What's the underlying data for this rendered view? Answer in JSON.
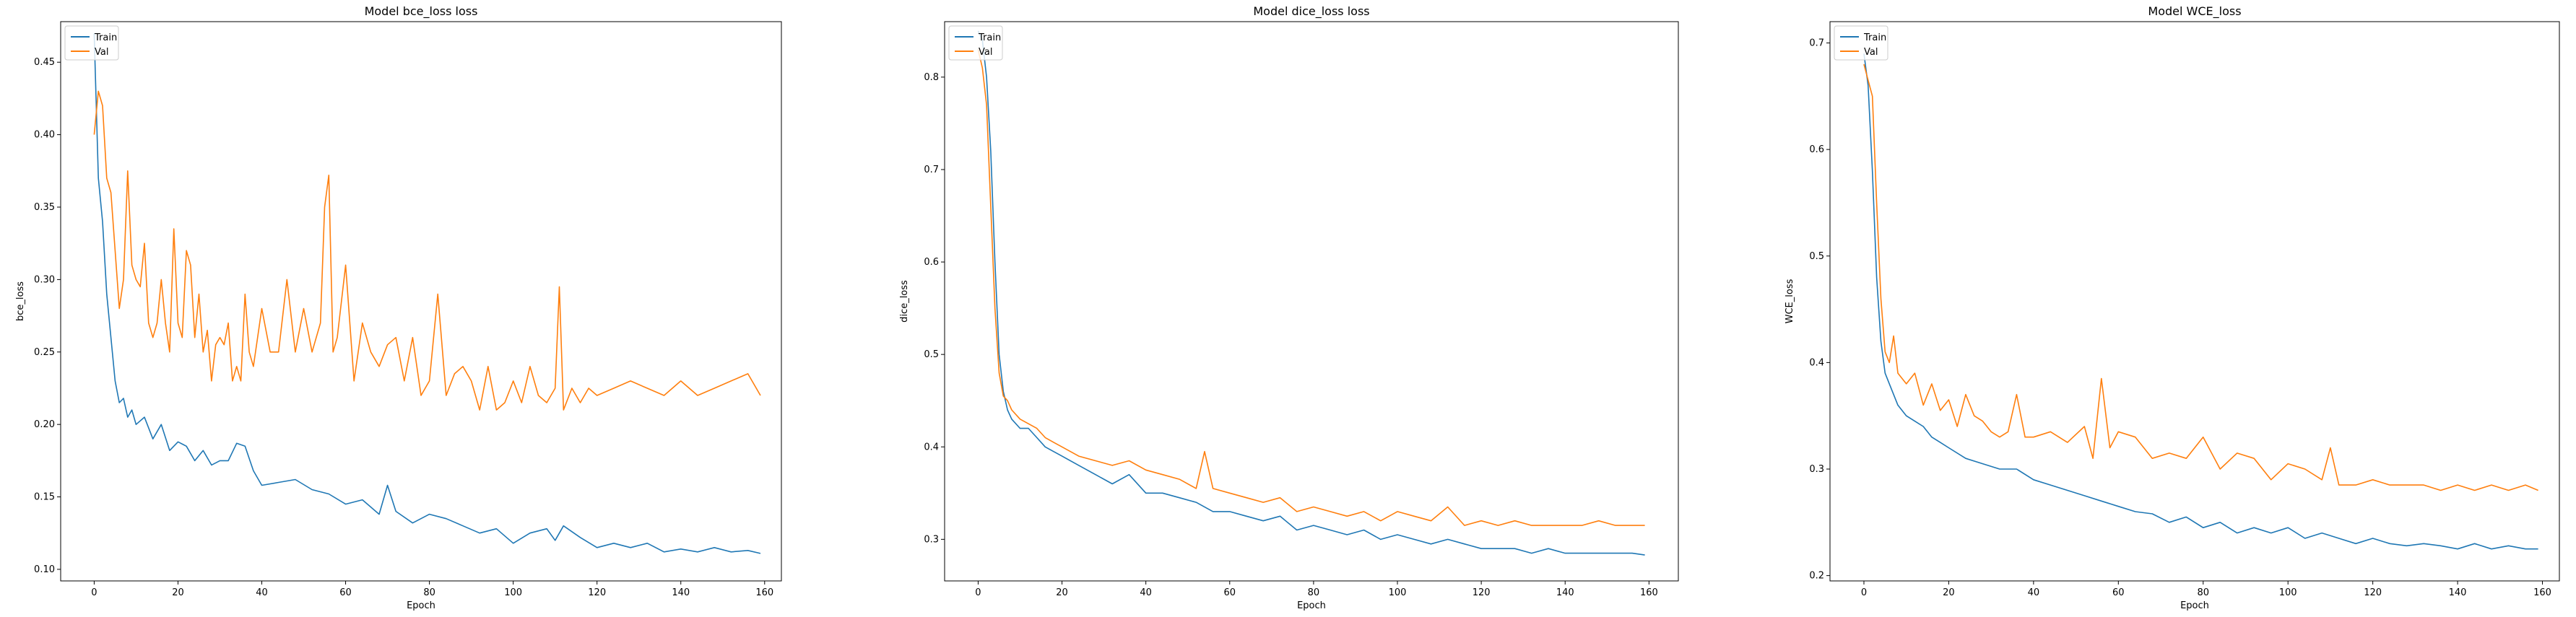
{
  "figure": {
    "colors": {
      "train": "#1f77b4",
      "val": "#ff7f0e"
    }
  },
  "chart_data": [
    {
      "type": "line",
      "title": "Model bce_loss loss",
      "xlabel": "Epoch",
      "ylabel": "bce_loss",
      "xlim": [
        -8,
        164
      ],
      "ylim": [
        0.092,
        0.478
      ],
      "xticks": [
        0,
        20,
        40,
        60,
        80,
        100,
        120,
        140,
        160
      ],
      "xtick_labels": [
        "0",
        "20",
        "40",
        "60",
        "80",
        "100",
        "120",
        "140",
        "160"
      ],
      "yticks": [
        0.1,
        0.15,
        0.2,
        0.25,
        0.3,
        0.35,
        0.4,
        0.45
      ],
      "ytick_labels": [
        "0.10",
        "0.15",
        "0.20",
        "0.25",
        "0.30",
        "0.35",
        "0.40",
        "0.45"
      ],
      "grid": false,
      "legend": {
        "position": "top-left",
        "entries": [
          "Train",
          "Val"
        ]
      },
      "series": [
        {
          "name": "Train",
          "color": "#1f77b4",
          "x": [
            0,
            1,
            2,
            3,
            4,
            5,
            6,
            7,
            8,
            9,
            10,
            12,
            14,
            16,
            18,
            20,
            22,
            24,
            26,
            28,
            30,
            32,
            34,
            36,
            38,
            40,
            44,
            48,
            52,
            56,
            60,
            64,
            68,
            70,
            72,
            76,
            80,
            84,
            88,
            92,
            96,
            100,
            104,
            108,
            110,
            112,
            116,
            120,
            124,
            128,
            132,
            136,
            140,
            144,
            148,
            152,
            156,
            159
          ],
          "values": [
            0.47,
            0.37,
            0.34,
            0.29,
            0.26,
            0.23,
            0.215,
            0.218,
            0.205,
            0.21,
            0.2,
            0.205,
            0.19,
            0.2,
            0.182,
            0.188,
            0.185,
            0.175,
            0.182,
            0.172,
            0.175,
            0.175,
            0.187,
            0.185,
            0.168,
            0.158,
            0.16,
            0.162,
            0.155,
            0.152,
            0.145,
            0.148,
            0.138,
            0.158,
            0.14,
            0.132,
            0.138,
            0.135,
            0.13,
            0.125,
            0.128,
            0.118,
            0.125,
            0.128,
            0.12,
            0.13,
            0.122,
            0.115,
            0.118,
            0.115,
            0.118,
            0.112,
            0.114,
            0.112,
            0.115,
            0.112,
            0.113,
            0.111
          ]
        },
        {
          "name": "Val",
          "color": "#ff7f0e",
          "x": [
            0,
            1,
            2,
            3,
            4,
            5,
            6,
            7,
            8,
            9,
            10,
            11,
            12,
            13,
            14,
            15,
            16,
            17,
            18,
            19,
            20,
            21,
            22,
            23,
            24,
            25,
            26,
            27,
            28,
            29,
            30,
            31,
            32,
            33,
            34,
            35,
            36,
            37,
            38,
            39,
            40,
            42,
            44,
            46,
            48,
            50,
            52,
            54,
            55,
            56,
            57,
            58,
            60,
            62,
            64,
            66,
            68,
            70,
            72,
            74,
            76,
            78,
            80,
            82,
            84,
            86,
            88,
            90,
            92,
            94,
            96,
            98,
            100,
            102,
            104,
            106,
            108,
            110,
            111,
            112,
            114,
            116,
            118,
            120,
            124,
            128,
            132,
            136,
            140,
            144,
            148,
            152,
            156,
            159
          ],
          "values": [
            0.4,
            0.43,
            0.42,
            0.37,
            0.36,
            0.32,
            0.28,
            0.3,
            0.375,
            0.31,
            0.3,
            0.295,
            0.325,
            0.27,
            0.26,
            0.27,
            0.3,
            0.27,
            0.25,
            0.335,
            0.27,
            0.26,
            0.32,
            0.31,
            0.26,
            0.29,
            0.25,
            0.265,
            0.23,
            0.255,
            0.26,
            0.255,
            0.27,
            0.23,
            0.24,
            0.23,
            0.29,
            0.25,
            0.24,
            0.26,
            0.28,
            0.25,
            0.25,
            0.3,
            0.25,
            0.28,
            0.25,
            0.27,
            0.35,
            0.372,
            0.25,
            0.26,
            0.31,
            0.23,
            0.27,
            0.25,
            0.24,
            0.255,
            0.26,
            0.23,
            0.26,
            0.22,
            0.23,
            0.29,
            0.22,
            0.235,
            0.24,
            0.23,
            0.21,
            0.24,
            0.21,
            0.215,
            0.23,
            0.215,
            0.24,
            0.22,
            0.215,
            0.225,
            0.295,
            0.21,
            0.225,
            0.215,
            0.225,
            0.22,
            0.225,
            0.23,
            0.225,
            0.22,
            0.23,
            0.22,
            0.225,
            0.23,
            0.235,
            0.22
          ]
        }
      ]
    },
    {
      "type": "line",
      "title": "Model dice_loss loss",
      "xlabel": "Epoch",
      "ylabel": "dice_loss",
      "xlim": [
        -8,
        167
      ],
      "ylim": [
        0.255,
        0.86
      ],
      "xticks": [
        0,
        20,
        40,
        60,
        80,
        100,
        120,
        140,
        160
      ],
      "xtick_labels": [
        "0",
        "20",
        "40",
        "60",
        "80",
        "100",
        "120",
        "140",
        "160"
      ],
      "yticks": [
        0.3,
        0.4,
        0.5,
        0.6,
        0.7,
        0.8
      ],
      "ytick_labels": [
        "0.3",
        "0.4",
        "0.5",
        "0.6",
        "0.7",
        "0.8"
      ],
      "grid": false,
      "legend": {
        "position": "top-left",
        "entries": [
          "Train",
          "Val"
        ]
      },
      "series": [
        {
          "name": "Train",
          "color": "#1f77b4",
          "x": [
            0,
            1,
            2,
            3,
            4,
            5,
            6,
            7,
            8,
            10,
            12,
            14,
            16,
            18,
            20,
            24,
            28,
            32,
            36,
            40,
            44,
            48,
            52,
            56,
            60,
            64,
            68,
            72,
            76,
            80,
            84,
            88,
            92,
            96,
            100,
            104,
            108,
            112,
            116,
            120,
            124,
            128,
            132,
            136,
            140,
            144,
            148,
            152,
            156,
            159
          ],
          "values": [
            0.85,
            0.84,
            0.8,
            0.72,
            0.6,
            0.5,
            0.46,
            0.44,
            0.43,
            0.42,
            0.42,
            0.41,
            0.4,
            0.395,
            0.39,
            0.38,
            0.37,
            0.36,
            0.37,
            0.35,
            0.35,
            0.345,
            0.34,
            0.33,
            0.33,
            0.325,
            0.32,
            0.325,
            0.31,
            0.315,
            0.31,
            0.305,
            0.31,
            0.3,
            0.305,
            0.3,
            0.295,
            0.3,
            0.295,
            0.29,
            0.29,
            0.29,
            0.285,
            0.29,
            0.285,
            0.285,
            0.285,
            0.285,
            0.285,
            0.283
          ]
        },
        {
          "name": "Val",
          "color": "#ff7f0e",
          "x": [
            0,
            1,
            2,
            3,
            4,
            5,
            6,
            7,
            8,
            10,
            12,
            14,
            16,
            18,
            20,
            24,
            28,
            32,
            36,
            40,
            44,
            48,
            52,
            54,
            56,
            60,
            64,
            68,
            72,
            76,
            80,
            84,
            88,
            92,
            96,
            100,
            104,
            108,
            112,
            116,
            120,
            124,
            128,
            132,
            136,
            140,
            144,
            148,
            152,
            156,
            159
          ],
          "values": [
            0.83,
            0.81,
            0.77,
            0.66,
            0.55,
            0.48,
            0.455,
            0.45,
            0.44,
            0.43,
            0.425,
            0.42,
            0.41,
            0.405,
            0.4,
            0.39,
            0.385,
            0.38,
            0.385,
            0.375,
            0.37,
            0.365,
            0.355,
            0.395,
            0.355,
            0.35,
            0.345,
            0.34,
            0.345,
            0.33,
            0.335,
            0.33,
            0.325,
            0.33,
            0.32,
            0.33,
            0.325,
            0.32,
            0.335,
            0.315,
            0.32,
            0.315,
            0.32,
            0.315,
            0.315,
            0.315,
            0.315,
            0.32,
            0.315,
            0.315,
            0.315
          ]
        }
      ]
    },
    {
      "type": "line",
      "title": "Model WCE_loss",
      "xlabel": "Epoch",
      "ylabel": "WCE_loss",
      "xlim": [
        -8,
        164
      ],
      "ylim": [
        0.195,
        0.72
      ],
      "xticks": [
        0,
        20,
        40,
        60,
        80,
        100,
        120,
        140,
        160
      ],
      "xtick_labels": [
        "0",
        "20",
        "40",
        "60",
        "80",
        "100",
        "120",
        "140",
        "160"
      ],
      "yticks": [
        0.2,
        0.3,
        0.4,
        0.5,
        0.6,
        0.7
      ],
      "ytick_labels": [
        "0.2",
        "0.3",
        "0.4",
        "0.5",
        "0.6",
        "0.7"
      ],
      "grid": false,
      "legend": {
        "position": "top-left",
        "entries": [
          "Train",
          "Val"
        ]
      },
      "series": [
        {
          "name": "Train",
          "color": "#1f77b4",
          "x": [
            0,
            1,
            2,
            3,
            4,
            5,
            6,
            7,
            8,
            10,
            12,
            14,
            16,
            18,
            20,
            24,
            28,
            32,
            36,
            40,
            44,
            48,
            52,
            56,
            60,
            64,
            68,
            72,
            76,
            80,
            84,
            88,
            92,
            96,
            100,
            104,
            108,
            112,
            116,
            120,
            124,
            128,
            132,
            136,
            140,
            144,
            148,
            152,
            156,
            159
          ],
          "values": [
            0.69,
            0.66,
            0.58,
            0.48,
            0.42,
            0.39,
            0.38,
            0.37,
            0.36,
            0.35,
            0.345,
            0.34,
            0.33,
            0.325,
            0.32,
            0.31,
            0.305,
            0.3,
            0.3,
            0.29,
            0.285,
            0.28,
            0.275,
            0.27,
            0.265,
            0.26,
            0.258,
            0.25,
            0.255,
            0.245,
            0.25,
            0.24,
            0.245,
            0.24,
            0.245,
            0.235,
            0.24,
            0.235,
            0.23,
            0.235,
            0.23,
            0.228,
            0.23,
            0.228,
            0.225,
            0.23,
            0.225,
            0.228,
            0.225,
            0.225
          ]
        },
        {
          "name": "Val",
          "color": "#ff7f0e",
          "x": [
            0,
            1,
            2,
            3,
            4,
            5,
            6,
            7,
            8,
            10,
            12,
            14,
            16,
            18,
            20,
            22,
            24,
            26,
            28,
            30,
            32,
            34,
            36,
            38,
            40,
            44,
            48,
            52,
            54,
            56,
            58,
            60,
            64,
            68,
            72,
            76,
            80,
            84,
            88,
            92,
            96,
            100,
            104,
            108,
            110,
            112,
            116,
            120,
            124,
            128,
            132,
            136,
            140,
            144,
            148,
            152,
            156,
            159
          ],
          "values": [
            0.68,
            0.665,
            0.65,
            0.55,
            0.46,
            0.41,
            0.4,
            0.425,
            0.39,
            0.38,
            0.39,
            0.36,
            0.38,
            0.355,
            0.365,
            0.34,
            0.37,
            0.35,
            0.345,
            0.335,
            0.33,
            0.335,
            0.37,
            0.33,
            0.33,
            0.335,
            0.325,
            0.34,
            0.31,
            0.385,
            0.32,
            0.335,
            0.33,
            0.31,
            0.315,
            0.31,
            0.33,
            0.3,
            0.315,
            0.31,
            0.29,
            0.305,
            0.3,
            0.29,
            0.32,
            0.285,
            0.285,
            0.29,
            0.285,
            0.285,
            0.285,
            0.28,
            0.285,
            0.28,
            0.285,
            0.28,
            0.285,
            0.28
          ]
        }
      ]
    }
  ]
}
